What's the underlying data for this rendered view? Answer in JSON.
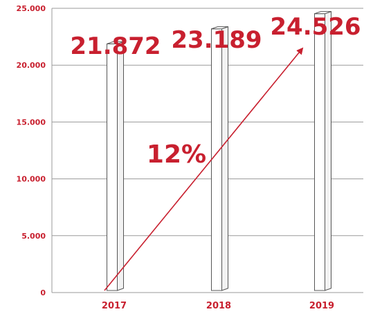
{
  "chart_data": {
    "type": "bar",
    "categories": [
      "2017",
      "2018",
      "2019"
    ],
    "values": [
      21872,
      23189,
      24526
    ],
    "value_labels": [
      "21.872",
      "23.189",
      "24.526"
    ],
    "ylim": [
      0,
      25000
    ],
    "yticks": [
      0,
      5000,
      10000,
      15000,
      20000,
      25000
    ],
    "ytick_labels": [
      "0",
      "5.000",
      "10.000",
      "15.000",
      "20.000",
      "25.000"
    ],
    "grid": true,
    "annotation": {
      "text": "12%",
      "from": "2017",
      "to": "2019"
    },
    "colors": {
      "accent": "#c8202f",
      "grid": "#9a9a9a",
      "bar_fill": "#ffffff",
      "bar_edge": "#555555"
    }
  }
}
